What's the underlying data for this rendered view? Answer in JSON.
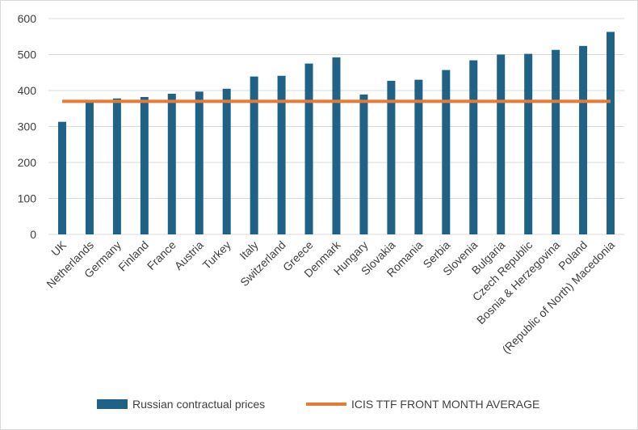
{
  "chart_data": {
    "type": "bar",
    "title": "",
    "xlabel": "",
    "ylabel": "",
    "ylim": [
      0,
      600
    ],
    "yticks": [
      0,
      100,
      200,
      300,
      400,
      500,
      600
    ],
    "grid": true,
    "legend_position": "bottom",
    "categories": [
      "UK",
      "Netherlands",
      "Germany",
      "Finland",
      "France",
      "Austria",
      "Turkey",
      "Italy",
      "Switzerland",
      "Greece",
      "Denmark",
      "Hungary",
      "Slovakia",
      "Romania",
      "Serbia",
      "Slovenia",
      "Bulgaria",
      "Czech Republic",
      "Bosnia & Herzegovina",
      "Poland",
      "(Republic of North) Macedonia"
    ],
    "series": [
      {
        "name": "Russian contractual prices",
        "type": "bar",
        "color": "#1f6285",
        "values": [
          313,
          372,
          378,
          382,
          391,
          397,
          405,
          439,
          441,
          475,
          492,
          389,
          427,
          430,
          457,
          484,
          500,
          502,
          513,
          524,
          563
        ]
      },
      {
        "name": "ICIS TTF FRONT MONTH AVERAGE",
        "type": "line",
        "color": "#e87a34",
        "value": 370
      }
    ]
  }
}
